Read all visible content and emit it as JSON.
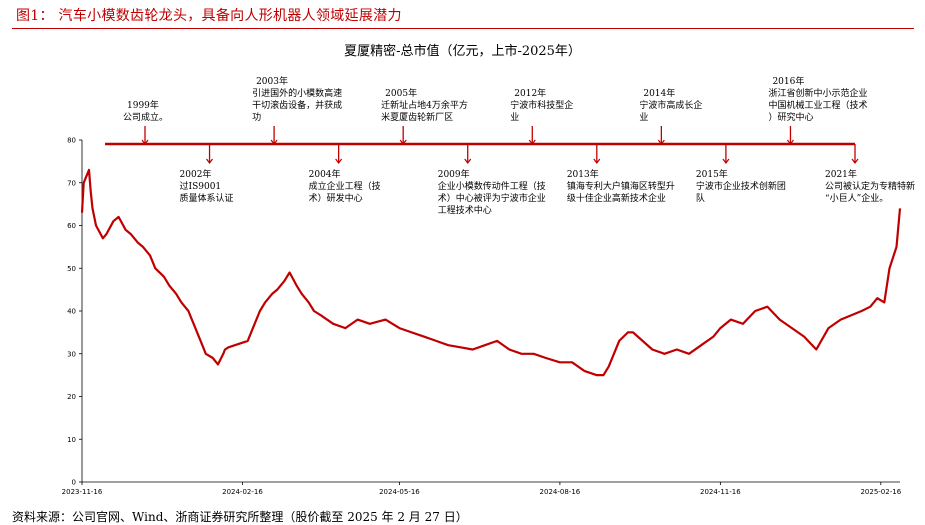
{
  "header": {
    "figure_title": "图1：  汽车小模数齿轮龙头，具备向人形机器人领域延展潜力"
  },
  "footer": {
    "source": "资料来源：公司官网、Wind、浙商证券研究所整理（股价截至 2025 年 2 月 27 日）"
  },
  "colors": {
    "accent": "#c00000",
    "line": "#c00000",
    "axis": "#000000"
  },
  "chart_data": {
    "type": "line",
    "title": "夏厦精密-总市值（亿元，上市-2025年）",
    "xlabel": "",
    "ylabel": "",
    "ylim": [
      0,
      80
    ],
    "yticks": [
      0,
      10,
      20,
      30,
      40,
      50,
      60,
      70,
      80
    ],
    "xrange": [
      "2023-11-16",
      "2025-02-27"
    ],
    "xticks": [
      "2023-11-16",
      "2024-02-16",
      "2024-05-16",
      "2024-08-16",
      "2024-11-16",
      "2025-02-16"
    ],
    "grid": false,
    "series": [
      {
        "x": [
          "2023-11-16",
          "2023-11-17",
          "2023-11-20",
          "2023-11-21",
          "2023-11-22",
          "2023-11-24",
          "2023-11-28",
          "2023-11-30",
          "2023-12-04",
          "2023-12-07",
          "2023-12-11",
          "2023-12-14",
          "2023-12-18",
          "2023-12-21",
          "2023-12-25",
          "2023-12-28",
          "2024-01-02",
          "2024-01-05",
          "2024-01-09",
          "2024-01-12",
          "2024-01-16",
          "2024-01-19",
          "2024-01-23",
          "2024-01-26",
          "2024-01-30",
          "2024-02-02",
          "2024-02-05",
          "2024-02-06",
          "2024-02-08",
          "2024-02-19",
          "2024-02-22",
          "2024-02-26",
          "2024-02-29",
          "2024-03-04",
          "2024-03-07",
          "2024-03-11",
          "2024-03-14",
          "2024-03-18",
          "2024-03-21",
          "2024-03-25",
          "2024-03-28",
          "2024-04-01",
          "2024-04-08",
          "2024-04-15",
          "2024-04-22",
          "2024-04-29",
          "2024-05-08",
          "2024-05-16",
          "2024-05-23",
          "2024-05-30",
          "2024-06-06",
          "2024-06-13",
          "2024-06-20",
          "2024-06-27",
          "2024-07-04",
          "2024-07-11",
          "2024-07-18",
          "2024-07-25",
          "2024-08-01",
          "2024-08-08",
          "2024-08-16",
          "2024-08-23",
          "2024-08-30",
          "2024-09-06",
          "2024-09-10",
          "2024-09-13",
          "2024-09-19",
          "2024-09-24",
          "2024-09-27",
          "2024-10-08",
          "2024-10-15",
          "2024-10-22",
          "2024-10-29",
          "2024-11-05",
          "2024-11-12",
          "2024-11-16",
          "2024-11-22",
          "2024-11-29",
          "2024-12-06",
          "2024-12-13",
          "2024-12-20",
          "2024-12-27",
          "2025-01-03",
          "2025-01-10",
          "2025-01-17",
          "2025-01-24",
          "2025-02-05",
          "2025-02-10",
          "2025-02-14",
          "2025-02-18",
          "2025-02-21",
          "2025-02-25",
          "2025-02-27"
        ],
        "values": [
          63,
          70,
          73,
          68,
          64,
          60,
          57,
          58,
          61,
          62,
          59,
          58,
          56,
          55,
          53,
          50,
          48,
          46,
          44,
          42,
          40,
          37,
          33,
          30,
          29,
          27.5,
          30,
          31,
          31.5,
          33,
          36,
          40,
          42,
          44,
          45,
          47,
          49,
          46,
          44,
          42,
          40,
          39,
          37,
          36,
          38,
          37,
          38,
          36,
          35,
          34,
          33,
          32,
          31.5,
          31,
          32,
          33,
          31,
          30,
          30,
          29,
          28,
          28,
          26,
          25,
          25,
          27,
          33,
          35,
          35,
          31,
          30,
          31,
          30,
          32,
          34,
          36,
          38,
          37,
          40,
          41,
          38,
          36,
          34,
          31,
          36,
          38,
          40,
          41,
          43,
          42,
          50,
          55,
          64
        ]
      }
    ],
    "annotations": [
      {
        "date": "1999-01-01",
        "pos": "above",
        "year": "1999年",
        "text": "公司成立。"
      },
      {
        "date": "2002-01-01",
        "pos": "below",
        "year": "2002年",
        "text": "过IS9001质量体系认证"
      },
      {
        "date": "2003-01-01",
        "pos": "above",
        "year": "2003年",
        "text": "引进国外的小模数高速干切滚齿设备，并获成功"
      },
      {
        "date": "2004-01-01",
        "pos": "below",
        "year": "2004年",
        "text": "成立企业工程（技术）研发中心"
      },
      {
        "date": "2005-01-01",
        "pos": "above",
        "year": "2005年",
        "text": "迁新址占地4万余平方米夏厦齿轮新厂区"
      },
      {
        "date": "2009-01-01",
        "pos": "below",
        "year": "2009年",
        "text": "企业小模数传动件工程（技术）中心被评为宁波市企业工程技术中心"
      },
      {
        "date": "2012-01-01",
        "pos": "above",
        "year": "2012年",
        "text": "宁波市科技型企业"
      },
      {
        "date": "2013-01-01",
        "pos": "below",
        "year": "2013年",
        "text": "镇海专利大户镇海区转型升级十佳企业高新技术企业"
      },
      {
        "date": "2014-01-01",
        "pos": "above",
        "year": "2014年",
        "text": "宁波市高成长企业"
      },
      {
        "date": "2015-01-01",
        "pos": "below",
        "year": "2015年",
        "text": "宁波市企业技术创新团队"
      },
      {
        "date": "2016-01-01",
        "pos": "above",
        "year": "2016年",
        "text": "浙江省创新中小示范企业中国机械工业工程（技术）研究中心"
      },
      {
        "date": "2021-01-01",
        "pos": "below",
        "year": "2021年",
        "text": "公司被认定为专精特新“小巨人”企业。"
      }
    ]
  }
}
